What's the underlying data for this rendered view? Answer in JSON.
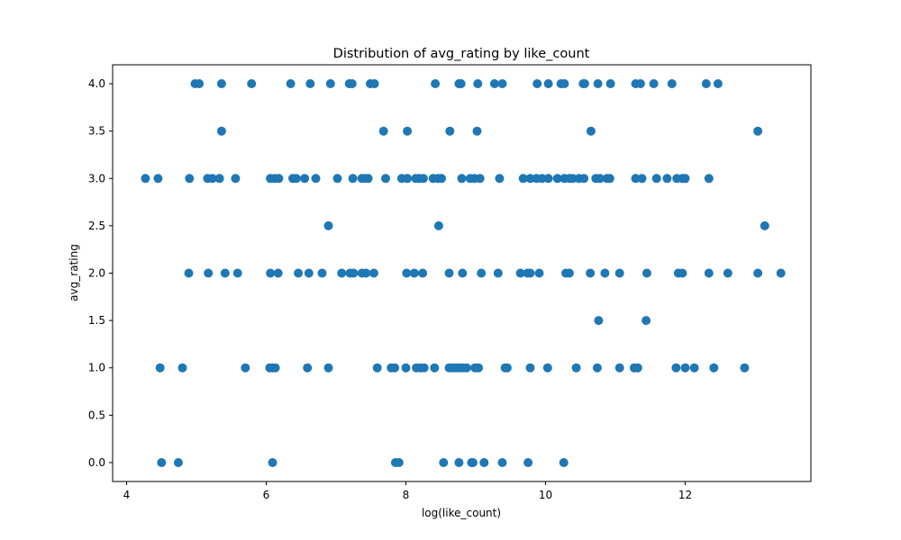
{
  "chart_data": {
    "type": "scatter",
    "title": "Distribution of avg_rating by like_count",
    "xlabel": "log(like_count)",
    "ylabel": "avg_rating",
    "xlim": [
      3.8,
      13.8
    ],
    "ylim": [
      -0.2,
      4.2
    ],
    "xticks": [
      4,
      6,
      8,
      10,
      12
    ],
    "xtick_labels": [
      "4",
      "6",
      "8",
      "10",
      "12"
    ],
    "yticks": [
      0,
      0.5,
      1,
      1.5,
      2,
      2.5,
      3,
      3.5,
      4
    ],
    "ytick_labels": [
      "0.0",
      "0.5",
      "1.0",
      "1.5",
      "2.0",
      "2.5",
      "3.0",
      "3.5",
      "4.0"
    ],
    "grid": false,
    "point_color": "#1f77b4",
    "points": [
      [
        4.98,
        4
      ],
      [
        5.04,
        4
      ],
      [
        5.36,
        4
      ],
      [
        5.79,
        4
      ],
      [
        6.35,
        4
      ],
      [
        6.63,
        4
      ],
      [
        6.92,
        4
      ],
      [
        7.19,
        4
      ],
      [
        7.23,
        4
      ],
      [
        7.49,
        4
      ],
      [
        7.55,
        4
      ],
      [
        8.42,
        4
      ],
      [
        8.76,
        4
      ],
      [
        8.79,
        4
      ],
      [
        9.03,
        4
      ],
      [
        9.27,
        4
      ],
      [
        9.38,
        4
      ],
      [
        9.88,
        4
      ],
      [
        10.04,
        4
      ],
      [
        10.22,
        4
      ],
      [
        10.27,
        4
      ],
      [
        10.54,
        4
      ],
      [
        10.56,
        4
      ],
      [
        10.75,
        4
      ],
      [
        10.93,
        4
      ],
      [
        11.29,
        4
      ],
      [
        11.36,
        4
      ],
      [
        11.55,
        4
      ],
      [
        11.81,
        4
      ],
      [
        12.3,
        4
      ],
      [
        12.47,
        4
      ],
      [
        5.36,
        3.5
      ],
      [
        7.68,
        3.5
      ],
      [
        8.02,
        3.5
      ],
      [
        8.63,
        3.5
      ],
      [
        9.02,
        3.5
      ],
      [
        10.65,
        3.5
      ],
      [
        13.04,
        3.5
      ],
      [
        4.27,
        3
      ],
      [
        4.45,
        3
      ],
      [
        4.9,
        3
      ],
      [
        5.16,
        3
      ],
      [
        5.23,
        3
      ],
      [
        5.33,
        3
      ],
      [
        5.56,
        3
      ],
      [
        6.06,
        3
      ],
      [
        6.12,
        3
      ],
      [
        6.18,
        3
      ],
      [
        6.38,
        3
      ],
      [
        6.43,
        3
      ],
      [
        6.55,
        3
      ],
      [
        6.71,
        3
      ],
      [
        7.02,
        3
      ],
      [
        7.24,
        3
      ],
      [
        7.37,
        3
      ],
      [
        7.42,
        3
      ],
      [
        7.46,
        3
      ],
      [
        7.71,
        3
      ],
      [
        7.94,
        3
      ],
      [
        8.02,
        3
      ],
      [
        8.14,
        3
      ],
      [
        8.19,
        3
      ],
      [
        8.25,
        3
      ],
      [
        8.39,
        3
      ],
      [
        8.46,
        3
      ],
      [
        8.51,
        3
      ],
      [
        8.8,
        3
      ],
      [
        8.92,
        3
      ],
      [
        8.98,
        3
      ],
      [
        9.06,
        3
      ],
      [
        9.34,
        3
      ],
      [
        9.68,
        3
      ],
      [
        9.78,
        3
      ],
      [
        9.87,
        3
      ],
      [
        9.95,
        3
      ],
      [
        10.04,
        3
      ],
      [
        10.17,
        3
      ],
      [
        10.27,
        3
      ],
      [
        10.34,
        3
      ],
      [
        10.39,
        3
      ],
      [
        10.48,
        3
      ],
      [
        10.55,
        3
      ],
      [
        10.72,
        3
      ],
      [
        10.78,
        3
      ],
      [
        10.88,
        3
      ],
      [
        10.92,
        3
      ],
      [
        11.29,
        3
      ],
      [
        11.38,
        3
      ],
      [
        11.59,
        3
      ],
      [
        11.74,
        3
      ],
      [
        11.88,
        3
      ],
      [
        11.96,
        3
      ],
      [
        12.0,
        3
      ],
      [
        12.34,
        3
      ],
      [
        6.89,
        2.5
      ],
      [
        8.47,
        2.5
      ],
      [
        13.14,
        2.5
      ],
      [
        4.89,
        2
      ],
      [
        5.17,
        2
      ],
      [
        5.41,
        2
      ],
      [
        5.59,
        2
      ],
      [
        6.06,
        2
      ],
      [
        6.17,
        2
      ],
      [
        6.46,
        2
      ],
      [
        6.61,
        2
      ],
      [
        6.8,
        2
      ],
      [
        7.08,
        2
      ],
      [
        7.2,
        2
      ],
      [
        7.25,
        2
      ],
      [
        7.37,
        2
      ],
      [
        7.43,
        2
      ],
      [
        7.54,
        2
      ],
      [
        8.01,
        2
      ],
      [
        8.12,
        2
      ],
      [
        8.24,
        2
      ],
      [
        8.62,
        2
      ],
      [
        8.81,
        2
      ],
      [
        9.08,
        2
      ],
      [
        9.32,
        2
      ],
      [
        9.64,
        2
      ],
      [
        9.74,
        2
      ],
      [
        9.78,
        2
      ],
      [
        9.91,
        2
      ],
      [
        10.29,
        2
      ],
      [
        10.34,
        2
      ],
      [
        10.64,
        2
      ],
      [
        10.85,
        2
      ],
      [
        11.06,
        2
      ],
      [
        11.45,
        2
      ],
      [
        11.9,
        2
      ],
      [
        11.96,
        2
      ],
      [
        12.34,
        2
      ],
      [
        12.61,
        2
      ],
      [
        13.04,
        2
      ],
      [
        13.37,
        2
      ],
      [
        10.76,
        1.5
      ],
      [
        11.44,
        1.5
      ],
      [
        4.48,
        1
      ],
      [
        4.8,
        1
      ],
      [
        5.7,
        1
      ],
      [
        6.05,
        1
      ],
      [
        6.09,
        1
      ],
      [
        6.13,
        1
      ],
      [
        6.59,
        1
      ],
      [
        6.89,
        1
      ],
      [
        7.59,
        1
      ],
      [
        7.79,
        1
      ],
      [
        7.84,
        1
      ],
      [
        8.0,
        1
      ],
      [
        8.15,
        1
      ],
      [
        8.21,
        1
      ],
      [
        8.26,
        1
      ],
      [
        8.41,
        1
      ],
      [
        8.62,
        1
      ],
      [
        8.67,
        1
      ],
      [
        8.72,
        1
      ],
      [
        8.77,
        1
      ],
      [
        8.82,
        1
      ],
      [
        8.87,
        1
      ],
      [
        8.99,
        1
      ],
      [
        9.04,
        1
      ],
      [
        9.42,
        1
      ],
      [
        9.45,
        1
      ],
      [
        9.78,
        1
      ],
      [
        10.03,
        1
      ],
      [
        10.44,
        1
      ],
      [
        10.74,
        1
      ],
      [
        11.06,
        1
      ],
      [
        11.27,
        1
      ],
      [
        11.32,
        1
      ],
      [
        11.87,
        1
      ],
      [
        12.0,
        1
      ],
      [
        12.13,
        1
      ],
      [
        12.41,
        1
      ],
      [
        12.85,
        1
      ],
      [
        4.5,
        0
      ],
      [
        4.74,
        0
      ],
      [
        6.09,
        0
      ],
      [
        7.85,
        0
      ],
      [
        7.9,
        0
      ],
      [
        8.54,
        0
      ],
      [
        8.76,
        0
      ],
      [
        8.94,
        0
      ],
      [
        8.96,
        0
      ],
      [
        9.12,
        0
      ],
      [
        9.38,
        0
      ],
      [
        9.75,
        0
      ],
      [
        10.26,
        0
      ]
    ]
  }
}
